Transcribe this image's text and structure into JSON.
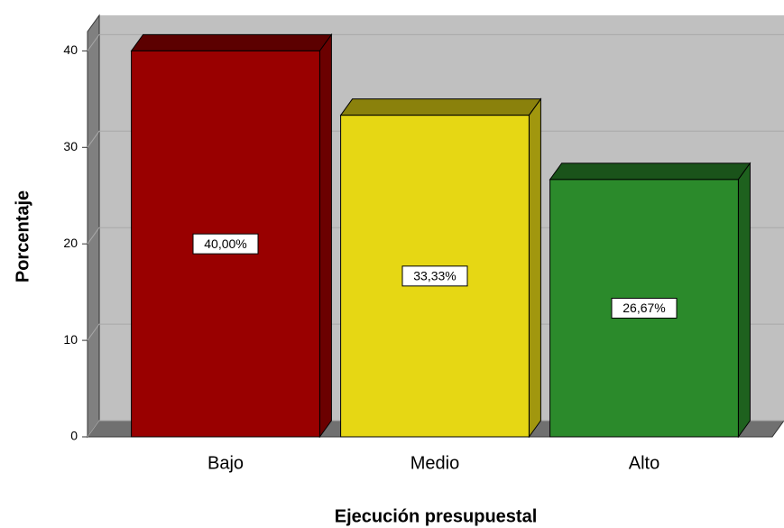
{
  "chart_data": {
    "type": "bar3d",
    "categories": [
      "Bajo",
      "Medio",
      "Alto"
    ],
    "values": [
      40,
      33.33,
      26.67
    ],
    "value_labels": [
      "40,00%",
      "33,33%",
      "26,67%"
    ],
    "colors": [
      "#990000",
      "#e6d714",
      "#2b8a2b"
    ],
    "xlabel": "Ejecución presupuestal",
    "ylabel": "Porcentaje",
    "ylim": [
      0,
      42
    ],
    "yticks": [
      0,
      10,
      20,
      30,
      40
    ],
    "grid": true
  }
}
